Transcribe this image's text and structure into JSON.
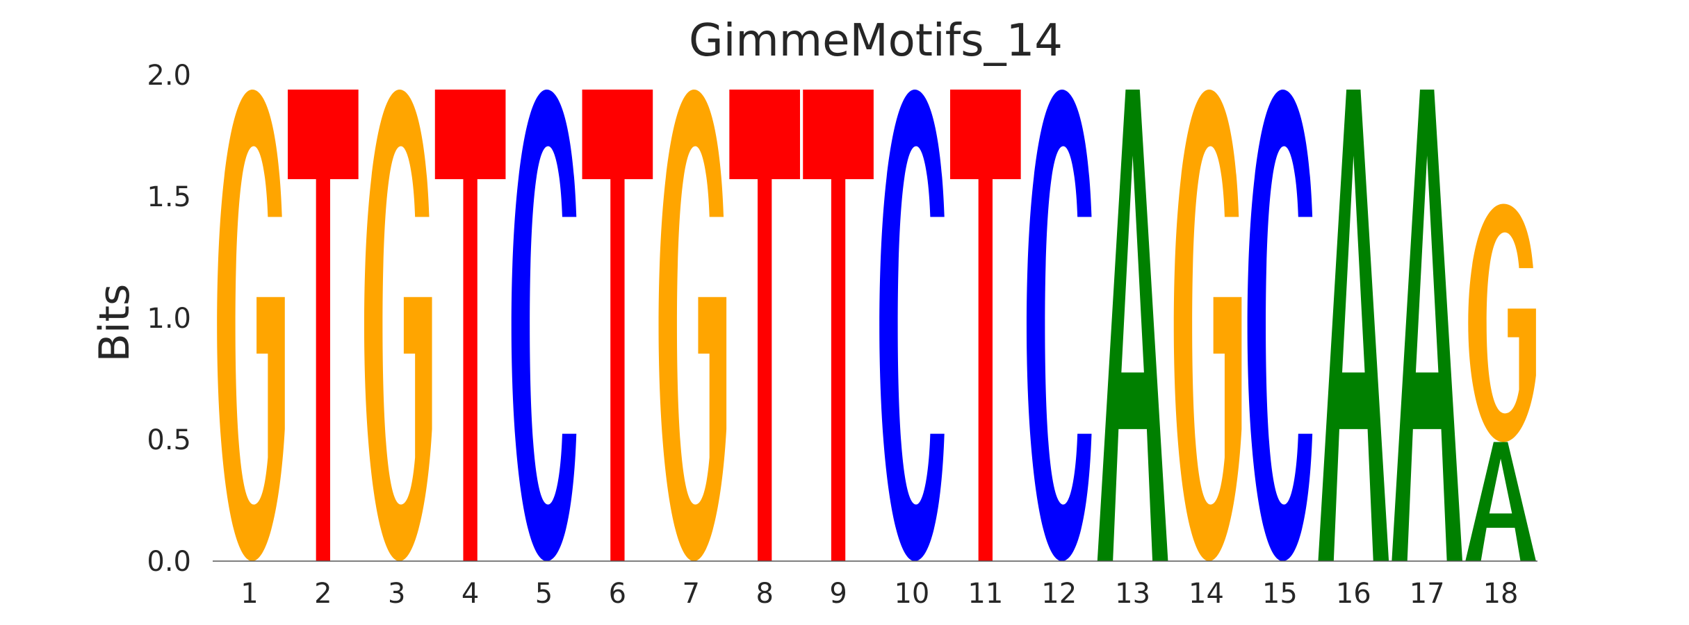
{
  "chart_data": {
    "type": "sequence-logo",
    "title": "GimmeMotifs_14",
    "xlabel": "",
    "ylabel": "Bits",
    "ylim": [
      0,
      2
    ],
    "yticks": [
      "0.0",
      "0.5",
      "1.0",
      "1.5",
      "2.0"
    ],
    "positions": [
      "1",
      "2",
      "3",
      "4",
      "5",
      "6",
      "7",
      "8",
      "9",
      "10",
      "11",
      "12",
      "13",
      "14",
      "15",
      "16",
      "17",
      "18"
    ],
    "colors": {
      "A": "#008000",
      "C": "#0000ff",
      "G": "#ffa500",
      "T": "#ff0000"
    },
    "columns": [
      [
        {
          "base": "G",
          "bits": 1.94
        }
      ],
      [
        {
          "base": "T",
          "bits": 1.94
        }
      ],
      [
        {
          "base": "G",
          "bits": 1.94
        }
      ],
      [
        {
          "base": "T",
          "bits": 1.94
        }
      ],
      [
        {
          "base": "C",
          "bits": 1.94
        }
      ],
      [
        {
          "base": "T",
          "bits": 1.94
        }
      ],
      [
        {
          "base": "G",
          "bits": 1.94
        }
      ],
      [
        {
          "base": "T",
          "bits": 1.94
        }
      ],
      [
        {
          "base": "T",
          "bits": 1.94
        }
      ],
      [
        {
          "base": "C",
          "bits": 1.94
        }
      ],
      [
        {
          "base": "T",
          "bits": 1.94
        }
      ],
      [
        {
          "base": "C",
          "bits": 1.94
        }
      ],
      [
        {
          "base": "A",
          "bits": 1.94
        }
      ],
      [
        {
          "base": "G",
          "bits": 1.94
        }
      ],
      [
        {
          "base": "C",
          "bits": 1.94
        }
      ],
      [
        {
          "base": "A",
          "bits": 1.94
        }
      ],
      [
        {
          "base": "A",
          "bits": 1.94
        }
      ],
      [
        {
          "base": "A",
          "bits": 0.49
        },
        {
          "base": "G",
          "bits": 0.98
        }
      ]
    ]
  }
}
